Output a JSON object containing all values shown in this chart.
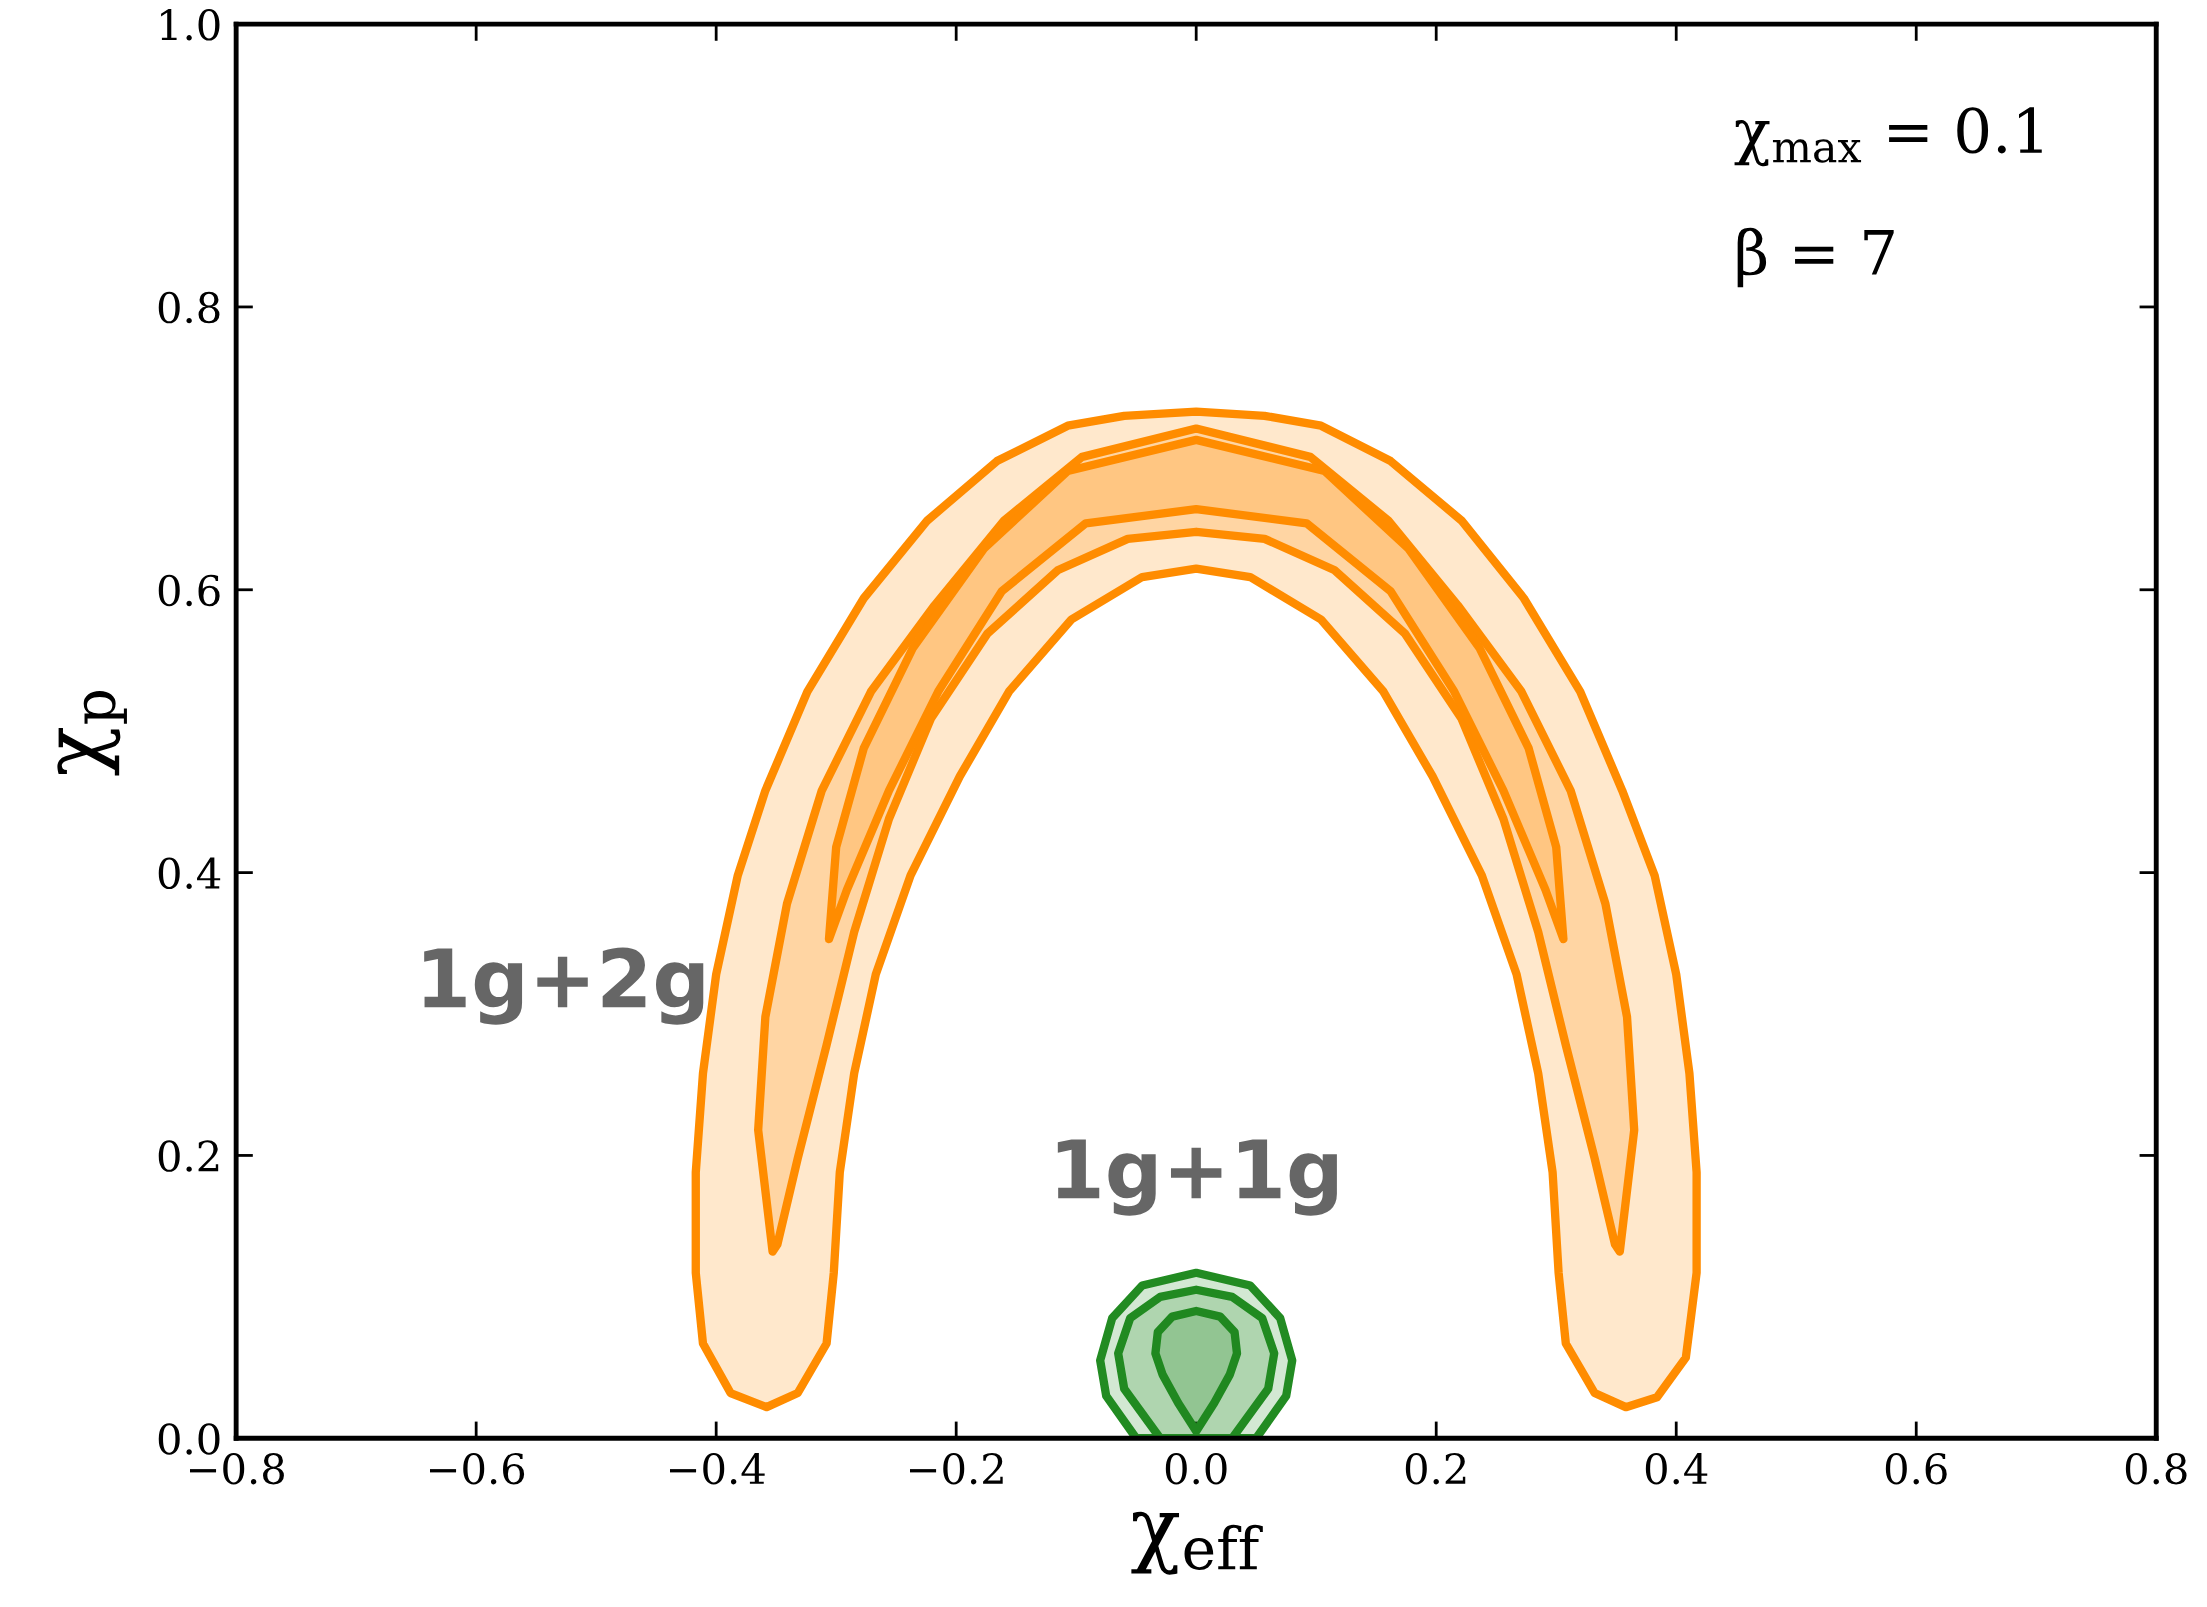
{
  "chart_data": {
    "type": "area",
    "xlabel": "χ$_{eff}$",
    "ylabel": "χ$_{p}$",
    "xlim": [
      -0.8,
      0.8
    ],
    "ylim": [
      0.0,
      1.0
    ],
    "xticks": [
      {
        "value": -0.8,
        "label": "−0.8"
      },
      {
        "value": -0.6,
        "label": "−0.6"
      },
      {
        "value": -0.4,
        "label": "−0.4"
      },
      {
        "value": -0.2,
        "label": "−0.2"
      },
      {
        "value": 0,
        "label": "0.0"
      },
      0.2,
      0.4,
      0.6,
      0.8
    ],
    "yticks": [
      {
        "value": 0,
        "label": "0.0"
      },
      0.2,
      0.4,
      0.6,
      0.8,
      {
        "value": 1,
        "label": "1.0"
      }
    ],
    "grid": false,
    "legend": false,
    "annotations": [
      "χ$_{max}$ = 0.1",
      "β = 7",
      "1g+2g",
      "1g+1g"
    ],
    "series": [
      {
        "color": "#ff8c00",
        "x": [
          -0.388,
          -0.411,
          -0.417,
          -0.417,
          -0.411,
          -0.4,
          -0.382,
          -0.359,
          -0.324,
          -0.277,
          -0.224,
          -0.166,
          -0.107,
          -0.06,
          0.0,
          0.057,
          0.104,
          0.162,
          0.221,
          0.273,
          0.32,
          0.355,
          0.382,
          0.4,
          0.411,
          0.417,
          0.417,
          0.408,
          0.384,
          0.358,
          0.332,
          0.308,
          0.302,
          0.297,
          0.285,
          0.267,
          0.238,
          0.197,
          0.156,
          0.104,
          0.045,
          0.0,
          -0.045,
          -0.104,
          -0.156,
          -0.197,
          -0.238,
          -0.267,
          -0.285,
          -0.297,
          -0.302,
          -0.308,
          -0.332,
          -0.358
        ],
        "values": [
          0.032,
          0.067,
          0.117,
          0.188,
          0.258,
          0.328,
          0.398,
          0.458,
          0.528,
          0.594,
          0.649,
          0.691,
          0.716,
          0.723,
          0.726,
          0.723,
          0.716,
          0.691,
          0.649,
          0.594,
          0.528,
          0.458,
          0.398,
          0.328,
          0.258,
          0.188,
          0.117,
          0.057,
          0.029,
          0.022,
          0.032,
          0.067,
          0.117,
          0.188,
          0.258,
          0.328,
          0.398,
          0.468,
          0.528,
          0.579,
          0.609,
          0.615,
          0.609,
          0.579,
          0.528,
          0.468,
          0.398,
          0.328,
          0.258,
          0.188,
          0.117,
          0.067,
          0.032,
          0.022
        ]
      },
      {
        "color": "#ff8c00",
        "x": [
          -0.353,
          -0.365,
          -0.359,
          -0.341,
          -0.312,
          -0.271,
          -0.218,
          -0.16,
          -0.095,
          0.0,
          0.095,
          0.16,
          0.218,
          0.271,
          0.312,
          0.341,
          0.359,
          0.365,
          0.353,
          0.349,
          0.332,
          0.308,
          0.285,
          0.256,
          0.221,
          0.174,
          0.115,
          0.057,
          0.0,
          -0.057,
          -0.115,
          -0.174,
          -0.221,
          -0.256,
          -0.285,
          -0.308,
          -0.332,
          -0.349
        ],
        "values": [
          0.132,
          0.218,
          0.298,
          0.378,
          0.458,
          0.528,
          0.589,
          0.649,
          0.694,
          0.714,
          0.694,
          0.649,
          0.589,
          0.528,
          0.458,
          0.378,
          0.298,
          0.218,
          0.132,
          0.137,
          0.198,
          0.278,
          0.358,
          0.438,
          0.509,
          0.569,
          0.614,
          0.636,
          0.641,
          0.636,
          0.614,
          0.569,
          0.509,
          0.438,
          0.358,
          0.278,
          0.198,
          0.137
        ]
      },
      {
        "color": "#ff8c00",
        "x": [
          -0.306,
          -0.3,
          -0.277,
          -0.236,
          -0.177,
          -0.107,
          0.0,
          0.107,
          0.177,
          0.236,
          0.277,
          0.3,
          0.306,
          0.291,
          0.256,
          0.215,
          0.162,
          0.092,
          0.0,
          -0.092,
          -0.162,
          -0.215,
          -0.256,
          -0.291
        ],
        "values": [
          0.353,
          0.418,
          0.488,
          0.559,
          0.629,
          0.684,
          0.706,
          0.684,
          0.629,
          0.559,
          0.488,
          0.418,
          0.353,
          0.388,
          0.458,
          0.528,
          0.599,
          0.647,
          0.657,
          0.647,
          0.599,
          0.528,
          0.458,
          0.388
        ]
      },
      {
        "color": "#228b22",
        "x": [
          -0.05,
          -0.075,
          -0.08,
          -0.07,
          -0.045,
          0.0,
          0.045,
          0.07,
          0.08,
          0.075,
          0.05
        ],
        "values": [
          0.0,
          0.03,
          0.055,
          0.085,
          0.108,
          0.117,
          0.108,
          0.085,
          0.055,
          0.03,
          0.0
        ]
      },
      {
        "color": "#218a21",
        "x": [
          -0.03,
          -0.06,
          -0.065,
          -0.055,
          -0.03,
          0.0,
          0.03,
          0.055,
          0.065,
          0.06,
          0.03
        ],
        "values": [
          0.0,
          0.035,
          0.06,
          0.085,
          0.1,
          0.105,
          0.1,
          0.085,
          0.06,
          0.035,
          0.0
        ]
      },
      {
        "color": "#208820",
        "x": [
          0.0,
          -0.015,
          -0.028,
          -0.034,
          -0.032,
          -0.02,
          0.0,
          0.02,
          0.032,
          0.034,
          0.028,
          0.015
        ],
        "values": [
          0.005,
          0.025,
          0.045,
          0.06,
          0.075,
          0.086,
          0.09,
          0.086,
          0.075,
          0.06,
          0.045,
          0.025
        ]
      }
    ]
  }
}
